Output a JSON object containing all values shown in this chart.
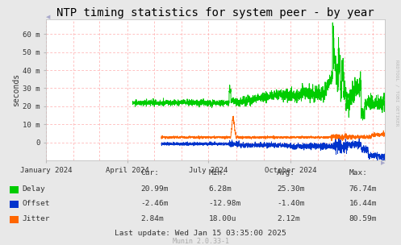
{
  "title": "NTP timing statistics for system peer - by year",
  "ylabel": "seconds",
  "background_color": "#e8e8e8",
  "plot_bg_color": "#ffffff",
  "grid_color": "#ffaaaa",
  "title_fontsize": 10,
  "watermark": "RRDTOOL / TOBI OETIKER",
  "munin_version": "Munin 2.0.33-1",
  "last_update": "Last update: Wed Jan 15 03:35:00 2025",
  "xlim_start": 1704067200,
  "xlim_end": 1736899200,
  "ylim_min": -0.01,
  "ylim_max": 0.068,
  "yticks": [
    0.0,
    0.01,
    0.02,
    0.03,
    0.04,
    0.05,
    0.06
  ],
  "ytick_labels": [
    "0",
    "10 m",
    "20 m",
    "30 m",
    "40 m",
    "50 m",
    "60 m"
  ],
  "xtick_positions": [
    1704067200,
    1711929600,
    1719792000,
    1727740800
  ],
  "xtick_labels": [
    "January 2024",
    "April 2024",
    "July 2024",
    "October 2024"
  ],
  "vgrid_positions": [
    1704067200,
    1706745600,
    1709251200,
    1711929600,
    1714521600,
    1717200000,
    1719792000,
    1722470400,
    1725148800,
    1727740800,
    1730419200,
    1733011200,
    1735689600
  ],
  "delay_color": "#00cc00",
  "offset_color": "#0033cc",
  "jitter_color": "#ff6600",
  "stats_headers": [
    "Cur:",
    "Min:",
    "Avg:",
    "Max:"
  ],
  "stats_rows": [
    {
      "name": "Delay",
      "color": "#00cc00",
      "cur": "20.99m",
      "min": "6.28m",
      "avg": "25.30m",
      "max": "76.74m"
    },
    {
      "name": "Offset",
      "color": "#0033cc",
      "cur": "-2.46m",
      "min": "-12.98m",
      "avg": "-1.40m",
      "max": "16.44m"
    },
    {
      "name": "Jitter",
      "color": "#ff6600",
      "cur": "2.84m",
      "min": "18.00u",
      "avg": "2.12m",
      "max": "80.59m"
    }
  ]
}
